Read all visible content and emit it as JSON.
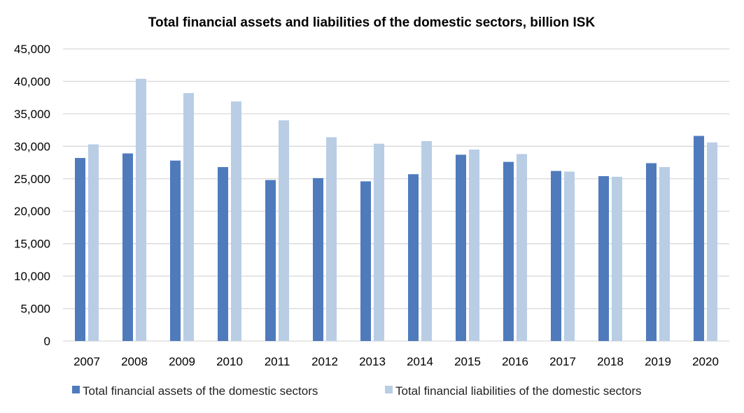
{
  "chart_data": {
    "type": "bar",
    "title": "Total financial assets and liabilities of the domestic sectors, billion ISK",
    "xlabel": "",
    "ylabel": "",
    "categories": [
      "2007",
      "2008",
      "2009",
      "2010",
      "2011",
      "2012",
      "2013",
      "2014",
      "2015",
      "2016",
      "2017",
      "2018",
      "2019",
      "2020"
    ],
    "series": [
      {
        "name": "Total financial assets of the domestic sectors",
        "color": "#4f7bbd",
        "values": [
          28200,
          28900,
          27800,
          26800,
          24800,
          25100,
          24600,
          25700,
          28700,
          27600,
          26200,
          25400,
          27400,
          31600
        ]
      },
      {
        "name": "Total financial liabilities of the domestic sectors",
        "color": "#b9cde5",
        "values": [
          30300,
          40400,
          38200,
          36900,
          34000,
          31400,
          30400,
          30800,
          29500,
          28800,
          26100,
          25300,
          26800,
          30600
        ]
      }
    ],
    "ylim": [
      0,
      45000
    ],
    "yticks": [
      0,
      5000,
      10000,
      15000,
      20000,
      25000,
      30000,
      35000,
      40000,
      45000
    ],
    "ytick_labels": [
      "0",
      "5,000",
      "10,000",
      "15,000",
      "20,000",
      "25,000",
      "30,000",
      "35,000",
      "40,000",
      "45,000"
    ],
    "grid": true,
    "legend_position": "bottom"
  }
}
